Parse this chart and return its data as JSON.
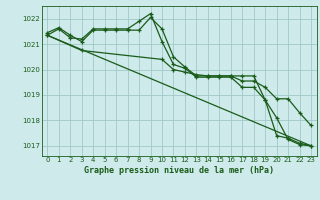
{
  "title": "Graphe pression niveau de la mer (hPa)",
  "bg_color": "#ceeaea",
  "grid_color": "#a0c8c8",
  "line_color": "#1a5c1a",
  "xlim": [
    -0.5,
    23.5
  ],
  "ylim": [
    1016.6,
    1022.5
  ],
  "yticks": [
    1017,
    1018,
    1019,
    1020,
    1021,
    1022
  ],
  "xticks": [
    0,
    1,
    2,
    3,
    4,
    5,
    6,
    7,
    8,
    9,
    10,
    11,
    12,
    13,
    14,
    15,
    16,
    17,
    18,
    19,
    20,
    21,
    22,
    23
  ],
  "series1_x": [
    0,
    1,
    2,
    3,
    4,
    5,
    6,
    7,
    8,
    9,
    10,
    11,
    12,
    13,
    14,
    15,
    16,
    17,
    18,
    19,
    20,
    21,
    22,
    23
  ],
  "series1_y": [
    1021.45,
    1021.65,
    1021.35,
    1021.1,
    1021.55,
    1021.55,
    1021.55,
    1021.55,
    1021.55,
    1022.05,
    1021.6,
    1020.5,
    1020.1,
    1019.75,
    1019.75,
    1019.75,
    1019.75,
    1019.75,
    1019.75,
    1018.8,
    1018.1,
    1017.25,
    1017.05,
    1017.0
  ],
  "series2_x": [
    0,
    1,
    2,
    3,
    4,
    5,
    6,
    7,
    8,
    9,
    10,
    11,
    12,
    13,
    14,
    15,
    16,
    17,
    18,
    19,
    20,
    21,
    22,
    23
  ],
  "series2_y": [
    1021.35,
    1021.6,
    1021.25,
    1021.2,
    1021.6,
    1021.6,
    1021.6,
    1021.6,
    1021.9,
    1022.2,
    1021.1,
    1020.2,
    1020.05,
    1019.7,
    1019.7,
    1019.7,
    1019.7,
    1019.3,
    1019.3,
    1018.8,
    1017.4,
    1017.3,
    1017.1,
    1017.0
  ],
  "series3_x": [
    0,
    3,
    10,
    11,
    12,
    13,
    14,
    15,
    16,
    17,
    18,
    19,
    20,
    21,
    22,
    23
  ],
  "series3_y": [
    1021.35,
    1020.75,
    1020.4,
    1020.0,
    1019.9,
    1019.8,
    1019.75,
    1019.75,
    1019.75,
    1019.55,
    1019.55,
    1019.3,
    1018.85,
    1018.85,
    1018.3,
    1017.8
  ],
  "series4_x": [
    0,
    23
  ],
  "series4_y": [
    1021.35,
    1017.0
  ]
}
